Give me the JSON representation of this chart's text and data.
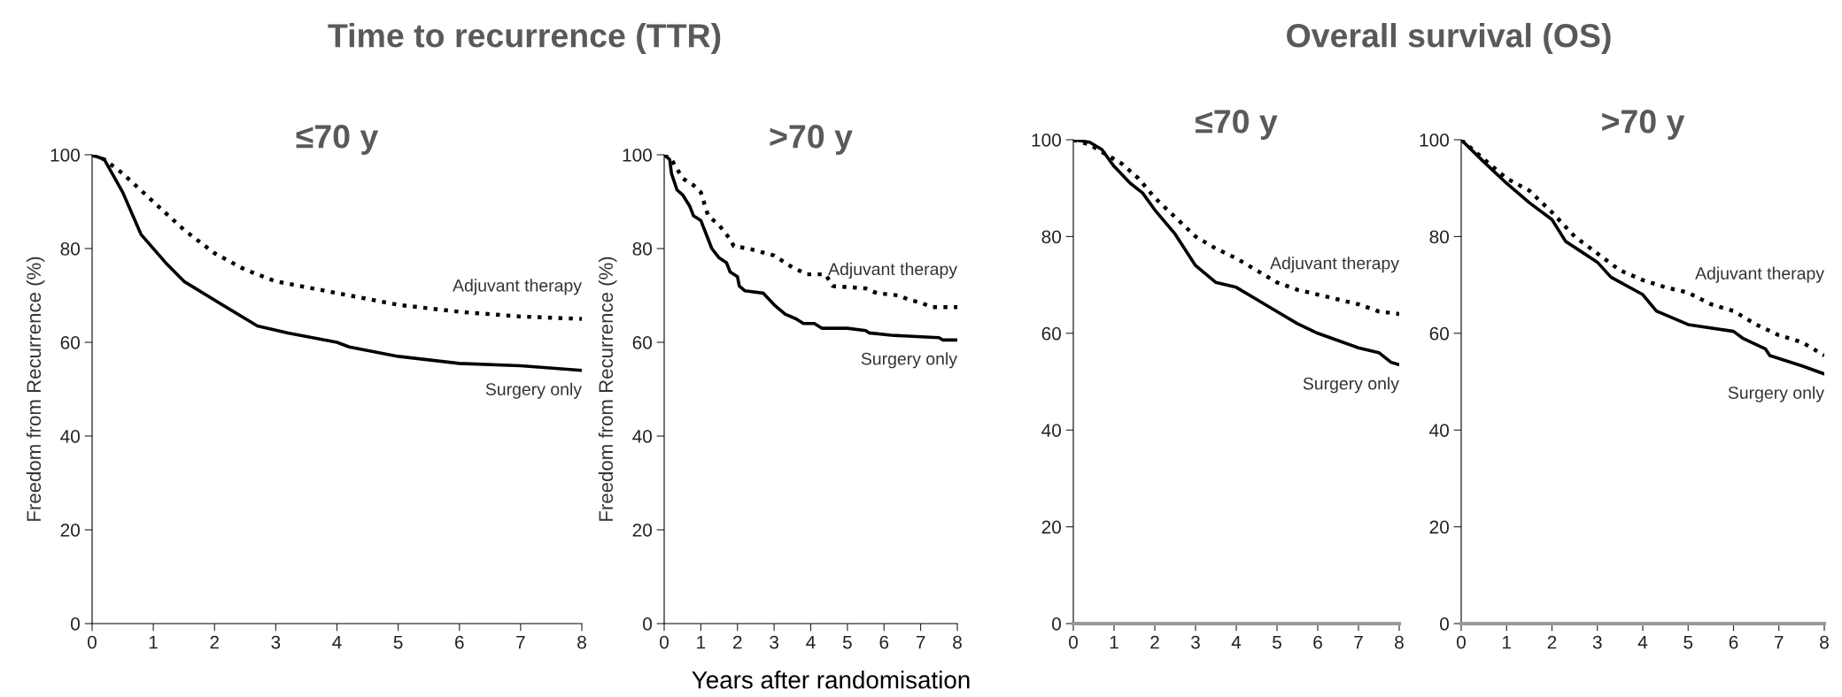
{
  "chart_data": [
    {
      "type": "line",
      "title": "≤70 y",
      "ylabel": "Freedom from Recurrence (%)",
      "annotations": [
        "Time to recurrence (TTR)"
      ],
      "xlim": [
        0,
        8
      ],
      "xticks": [
        0,
        1,
        2,
        3,
        4,
        5,
        6,
        7,
        8
      ],
      "ylim": [
        0,
        100
      ],
      "yticks": [
        0,
        20,
        40,
        60,
        80,
        100
      ],
      "grid": false,
      "legend": false,
      "series": [
        {
          "name": "Adjuvant therapy",
          "color": "#000000",
          "line_style": "dotted",
          "x": [
            0,
            0.2,
            0.5,
            1,
            1.5,
            2,
            2.5,
            3,
            4,
            5,
            6,
            7,
            8
          ],
          "values": [
            100,
            99,
            96,
            90,
            84,
            79,
            75.5,
            73,
            70.5,
            68,
            66.5,
            65.5,
            65
          ]
        },
        {
          "name": "Surgery only",
          "color": "#000000",
          "line_style": "solid",
          "x": [
            0,
            0.2,
            0.5,
            0.8,
            1.2,
            1.5,
            2,
            2.7,
            3.2,
            4,
            4.2,
            5,
            6,
            7,
            8
          ],
          "values": [
            100,
            99,
            92,
            83,
            77,
            73,
            69,
            63.5,
            62,
            60,
            59,
            57,
            55.5,
            55,
            54
          ]
        }
      ]
    },
    {
      "type": "line",
      "title": ">70 y",
      "ylabel": "Freedom from Recurrence (%)",
      "annotations": [
        "Years after randomisation"
      ],
      "xlim": [
        0,
        8
      ],
      "xticks": [
        0,
        1,
        2,
        3,
        4,
        5,
        6,
        7,
        8
      ],
      "ylim": [
        0,
        100
      ],
      "yticks": [
        0,
        20,
        40,
        60,
        80,
        100
      ],
      "grid": false,
      "legend": false,
      "series": [
        {
          "name": "Adjuvant therapy",
          "color": "#000000",
          "line_style": "dotted",
          "x": [
            0,
            0.2,
            0.5,
            0.8,
            1,
            1.2,
            1.5,
            1.8,
            1.9,
            2.3,
            3,
            3.5,
            3.9,
            4.4,
            4.6,
            5.5,
            5.8,
            6.4,
            6.7,
            7,
            7.3,
            8
          ],
          "values": [
            100,
            99,
            95,
            93.5,
            92,
            87,
            85,
            82,
            80.5,
            80,
            78.5,
            76,
            74.5,
            74.5,
            72,
            71.5,
            70.5,
            70,
            69,
            68.5,
            67.5,
            67.5
          ]
        },
        {
          "name": "Surgery only",
          "color": "#000000",
          "line_style": "solid",
          "x": [
            0,
            0.15,
            0.2,
            0.35,
            0.5,
            0.7,
            0.8,
            1.0,
            1.3,
            1.5,
            1.7,
            1.8,
            2,
            2.05,
            2.2,
            2.7,
            3,
            3.3,
            3.6,
            3.8,
            4.1,
            4.3,
            5,
            5.5,
            5.6,
            6.2,
            7.5,
            7.6,
            8
          ],
          "values": [
            100,
            99,
            96,
            92.5,
            91.5,
            89,
            87,
            86,
            80,
            78,
            77,
            75,
            74,
            72,
            71,
            70.5,
            68,
            66,
            65,
            64,
            64,
            63,
            63,
            62.5,
            62,
            61.5,
            61,
            60.5,
            60.5
          ]
        }
      ]
    },
    {
      "type": "line",
      "title": "≤70 y",
      "annotations": [
        "Overall survival (OS)"
      ],
      "xlim": [
        0,
        8
      ],
      "xticks": [
        0,
        1,
        2,
        3,
        4,
        5,
        6,
        7,
        8
      ],
      "ylim": [
        0,
        100
      ],
      "yticks": [
        0,
        20,
        40,
        60,
        80,
        100
      ],
      "grid": false,
      "legend": false,
      "series": [
        {
          "name": "Adjuvant therapy",
          "color": "#000000",
          "line_style": "dotted",
          "x": [
            0,
            0.4,
            0.8,
            1.2,
            1.6,
            2,
            2.5,
            3,
            3.5,
            4,
            4.5,
            5,
            5.5,
            6,
            6.5,
            7,
            7.5,
            8
          ],
          "values": [
            100,
            99,
            97,
            95,
            92,
            88,
            84,
            80,
            77.5,
            75.5,
            73,
            70.5,
            69,
            68,
            67,
            66,
            64.5,
            64
          ]
        },
        {
          "name": "Surgery only",
          "color": "#000000",
          "line_style": "solid",
          "x": [
            0,
            0.4,
            0.7,
            1,
            1.4,
            1.7,
            2,
            2.5,
            3,
            3.5,
            4,
            4.5,
            5,
            5.5,
            6,
            6.5,
            7,
            7.5,
            7.8,
            8
          ],
          "values": [
            100,
            99.5,
            98,
            94.5,
            91,
            89,
            85.5,
            80.5,
            74,
            70.5,
            69.5,
            67,
            64.5,
            62,
            60,
            58.5,
            57,
            56,
            54,
            53.5
          ]
        }
      ]
    },
    {
      "type": "line",
      "title": ">70 y",
      "xlim": [
        0,
        8
      ],
      "xticks": [
        0,
        1,
        2,
        3,
        4,
        5,
        6,
        7,
        8
      ],
      "ylim": [
        0,
        100
      ],
      "yticks": [
        0,
        20,
        40,
        60,
        80,
        100
      ],
      "grid": false,
      "legend": false,
      "series": [
        {
          "name": "Adjuvant therapy",
          "color": "#000000",
          "line_style": "dotted",
          "x": [
            0,
            0.5,
            1,
            1.5,
            2,
            2.5,
            3,
            3.5,
            4,
            4.5,
            5,
            5.5,
            6,
            6.5,
            7,
            7.5,
            8
          ],
          "values": [
            100,
            96,
            92,
            89.5,
            85,
            80,
            76.5,
            73,
            71,
            69.5,
            68.4,
            66,
            64.6,
            61.8,
            59.6,
            58.2,
            55.4
          ]
        },
        {
          "name": "Surgery only",
          "color": "#000000",
          "line_style": "solid",
          "x": [
            0,
            0.5,
            1,
            1.5,
            2,
            2.3,
            3,
            3.3,
            4,
            4.3,
            5,
            6,
            6.2,
            6.7,
            6.8,
            7.5,
            8
          ],
          "values": [
            100,
            95.4,
            91,
            87,
            83.5,
            79,
            74.7,
            71.6,
            68,
            64.6,
            61.8,
            60.4,
            59,
            56.8,
            55.4,
            53.3,
            51.6
          ]
        }
      ]
    }
  ]
}
